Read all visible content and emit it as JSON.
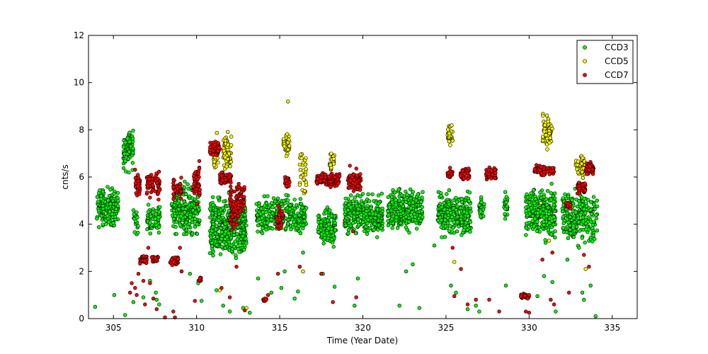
{
  "chart_data": {
    "type": "scatter",
    "xlabel": "Time (Year Date)",
    "ylabel": "cnts/s",
    "xlim": [
      303.5,
      336.5
    ],
    "ylim": [
      0,
      12
    ],
    "xticks": [
      305,
      310,
      315,
      320,
      325,
      330,
      335
    ],
    "yticks": [
      0,
      2,
      4,
      6,
      8,
      10,
      12
    ],
    "legend_position": "top-right",
    "grid": false,
    "series": [
      {
        "name": "CCD3",
        "color": "#00ff00",
        "clusters": [
          {
            "x": [
              304.0,
              305.3
            ],
            "y": [
              3.6,
              5.8
            ],
            "n": 160
          },
          {
            "x": [
              305.6,
              306.2
            ],
            "y": [
              6.0,
              8.4
            ],
            "n": 80
          },
          {
            "x": [
              306.2,
              306.5
            ],
            "y": [
              3.2,
              5.0
            ],
            "n": 20
          },
          {
            "x": [
              307.0,
              307.4
            ],
            "y": [
              3.5,
              5.0
            ],
            "n": 40
          },
          {
            "x": [
              307.5,
              307.8
            ],
            "y": [
              3.5,
              5.0
            ],
            "n": 30
          },
          {
            "x": [
              308.5,
              310.2
            ],
            "y": [
              3.2,
              6.0
            ],
            "n": 220
          },
          {
            "x": [
              310.8,
              313.0
            ],
            "y": [
              2.0,
              5.6
            ],
            "n": 380
          },
          {
            "x": [
              313.6,
              316.6
            ],
            "y": [
              3.3,
              5.5
            ],
            "n": 260
          },
          {
            "x": [
              317.3,
              318.4
            ],
            "y": [
              2.8,
              5.0
            ],
            "n": 120
          },
          {
            "x": [
              318.9,
              321.2
            ],
            "y": [
              3.3,
              5.5
            ],
            "n": 300
          },
          {
            "x": [
              321.5,
              323.6
            ],
            "y": [
              3.5,
              5.8
            ],
            "n": 260
          },
          {
            "x": [
              324.5,
              326.5
            ],
            "y": [
              3.2,
              5.6
            ],
            "n": 240
          },
          {
            "x": [
              327.0,
              327.3
            ],
            "y": [
              4.1,
              5.3
            ],
            "n": 30
          },
          {
            "x": [
              328.5,
              328.7
            ],
            "y": [
              4.0,
              5.6
            ],
            "n": 25
          },
          {
            "x": [
              329.8,
              331.6
            ],
            "y": [
              3.0,
              6.0
            ],
            "n": 260
          },
          {
            "x": [
              332.0,
              334.1
            ],
            "y": [
              2.8,
              5.8
            ],
            "n": 240
          }
        ],
        "scatter": [
          [
            303.9,
            0.5
          ],
          [
            305.05,
            1.0
          ],
          [
            305.7,
            0.15
          ],
          [
            306.2,
            0.7
          ],
          [
            306.8,
            0.9
          ],
          [
            307.2,
            1.6
          ],
          [
            307.55,
            1.1
          ],
          [
            307.6,
            0.8
          ],
          [
            307.75,
            0.6
          ],
          [
            309.1,
            2.0
          ],
          [
            309.6,
            1.9
          ],
          [
            310.1,
            1.5
          ],
          [
            310.3,
            0.75
          ],
          [
            311.2,
            1.2
          ],
          [
            311.6,
            0.55
          ],
          [
            312.0,
            0.3
          ],
          [
            312.8,
            0.45
          ],
          [
            313.2,
            0.25
          ],
          [
            313.7,
            1.7
          ],
          [
            314.5,
            1.1
          ],
          [
            315.1,
            1.3
          ],
          [
            315.3,
            2.0
          ],
          [
            315.9,
            0.85
          ],
          [
            316.1,
            1.15
          ],
          [
            316.4,
            2.8
          ],
          [
            317.6,
            1.9
          ],
          [
            318.3,
            1.35
          ],
          [
            319.5,
            0.55
          ],
          [
            319.7,
            1.7
          ],
          [
            322.2,
            0.55
          ],
          [
            322.6,
            2.0
          ],
          [
            323.0,
            2.3
          ],
          [
            323.4,
            0.45
          ],
          [
            324.3,
            3.1
          ],
          [
            325.3,
            1.4
          ],
          [
            325.6,
            1.1
          ],
          [
            326.3,
            0.4
          ],
          [
            326.8,
            0.55
          ],
          [
            327.0,
            0.3
          ],
          [
            328.6,
            1.4
          ],
          [
            330.5,
            0.95
          ],
          [
            330.9,
            1.8
          ],
          [
            331.4,
            1.55
          ],
          [
            331.6,
            0.3
          ],
          [
            332.3,
            2.5
          ],
          [
            333.0,
            3.0
          ],
          [
            333.2,
            1.1
          ],
          [
            333.3,
            0.8
          ],
          [
            333.7,
            1.4
          ],
          [
            334.0,
            0.1
          ]
        ]
      },
      {
        "name": "CCD5",
        "color": "#ffff00",
        "clusters": [
          {
            "x": [
              311.0,
              311.3
            ],
            "y": [
              6.0,
              8.0
            ],
            "n": 30
          },
          {
            "x": [
              311.6,
              312.1
            ],
            "y": [
              5.8,
              8.2
            ],
            "n": 70
          },
          {
            "x": [
              315.2,
              315.6
            ],
            "y": [
              6.8,
              8.0
            ],
            "n": 40
          },
          {
            "x": [
              316.2,
              316.6
            ],
            "y": [
              5.0,
              7.5
            ],
            "n": 30
          },
          {
            "x": [
              318.0,
              318.3
            ],
            "y": [
              6.0,
              7.3
            ],
            "n": 25
          },
          {
            "x": [
              325.1,
              325.4
            ],
            "y": [
              7.2,
              8.4
            ],
            "n": 30
          },
          {
            "x": [
              330.8,
              331.4
            ],
            "y": [
              7.0,
              8.8
            ],
            "n": 60
          },
          {
            "x": [
              332.8,
              333.4
            ],
            "y": [
              5.8,
              7.2
            ],
            "n": 40
          }
        ],
        "scatter": [
          [
            315.5,
            9.2
          ],
          [
            311.4,
            1.2
          ],
          [
            313.0,
            0.45
          ],
          [
            316.4,
            2.0
          ],
          [
            325.5,
            2.4
          ],
          [
            331.2,
            3.3
          ],
          [
            333.4,
            2.1
          ],
          [
            330.7,
            4.9
          ]
        ]
      },
      {
        "name": "CCD7",
        "color": "#ff0000",
        "clusters": [
          {
            "x": [
              306.3,
              306.6
            ],
            "y": [
              5.0,
              6.4
            ],
            "n": 40
          },
          {
            "x": [
              306.6,
              307.0
            ],
            "y": [
              2.3,
              2.7
            ],
            "n": 40
          },
          {
            "x": [
              307.0,
              307.4
            ],
            "y": [
              5.0,
              6.4
            ],
            "n": 40
          },
          {
            "x": [
              307.3,
              307.7
            ],
            "y": [
              2.3,
              2.7
            ],
            "n": 30
          },
          {
            "x": [
              307.5,
              307.8
            ],
            "y": [
              5.0,
              6.4
            ],
            "n": 30
          },
          {
            "x": [
              308.4,
              308.9
            ],
            "y": [
              2.2,
              2.7
            ],
            "n": 40
          },
          {
            "x": [
              308.6,
              309.1
            ],
            "y": [
              4.8,
              6.1
            ],
            "n": 40
          },
          {
            "x": [
              309.8,
              310.2
            ],
            "y": [
              4.8,
              6.8
            ],
            "n": 50
          },
          {
            "x": [
              310.1,
              310.3
            ],
            "y": [
              1.5,
              1.8
            ],
            "n": 10
          },
          {
            "x": [
              310.8,
              311.4
            ],
            "y": [
              6.8,
              7.6
            ],
            "n": 70
          },
          {
            "x": [
              311.4,
              312.1
            ],
            "y": [
              5.6,
              6.3
            ],
            "n": 60
          },
          {
            "x": [
              312.0,
              312.5
            ],
            "y": [
              3.4,
              5.8
            ],
            "n": 80
          },
          {
            "x": [
              312.5,
              312.9
            ],
            "y": [
              4.0,
              6.3
            ],
            "n": 40
          },
          {
            "x": [
              314.0,
              314.2
            ],
            "y": [
              0.7,
              0.9
            ],
            "n": 10
          },
          {
            "x": [
              314.8,
              315.2
            ],
            "y": [
              3.5,
              5.0
            ],
            "n": 30
          },
          {
            "x": [
              315.3,
              315.6
            ],
            "y": [
              5.4,
              6.2
            ],
            "n": 30
          },
          {
            "x": [
              317.2,
              318.6
            ],
            "y": [
              5.5,
              6.3
            ],
            "n": 140
          },
          {
            "x": [
              319.1,
              319.9
            ],
            "y": [
              5.2,
              6.5
            ],
            "n": 80
          },
          {
            "x": [
              325.1,
              325.4
            ],
            "y": [
              5.8,
              6.4
            ],
            "n": 25
          },
          {
            "x": [
              325.8,
              326.4
            ],
            "y": [
              5.8,
              6.5
            ],
            "n": 40
          },
          {
            "x": [
              327.4,
              328.0
            ],
            "y": [
              5.8,
              6.5
            ],
            "n": 50
          },
          {
            "x": [
              329.5,
              330.0
            ],
            "y": [
              0.8,
              1.1
            ],
            "n": 40
          },
          {
            "x": [
              330.3,
              331.5
            ],
            "y": [
              6.0,
              6.6
            ],
            "n": 80
          },
          {
            "x": [
              332.2,
              332.5
            ],
            "y": [
              4.6,
              5.0
            ],
            "n": 15
          },
          {
            "x": [
              332.9,
              333.4
            ],
            "y": [
              5.2,
              6.0
            ],
            "n": 40
          },
          {
            "x": [
              333.4,
              333.9
            ],
            "y": [
              6.0,
              6.7
            ],
            "n": 50
          }
        ],
        "scatter": [
          [
            306.0,
            1.1
          ],
          [
            306.1,
            1.5
          ],
          [
            306.3,
            1.3
          ],
          [
            306.4,
            1.0
          ],
          [
            306.5,
            1.9
          ],
          [
            306.8,
            1.6
          ],
          [
            306.9,
            0.6
          ],
          [
            307.1,
            3.0
          ],
          [
            307.2,
            1.5
          ],
          [
            307.4,
            0.85
          ],
          [
            307.6,
            0.4
          ],
          [
            308.1,
            0.05
          ],
          [
            308.5,
            2.5
          ],
          [
            308.6,
            0.3
          ],
          [
            308.7,
            0.05
          ],
          [
            309.0,
            3.0
          ],
          [
            309.1,
            2.0
          ],
          [
            309.9,
            0.75
          ],
          [
            311.5,
            1.3
          ],
          [
            312.0,
            0.9
          ],
          [
            312.4,
            2.2
          ],
          [
            312.9,
            0.35
          ],
          [
            314.3,
            1.0
          ],
          [
            314.9,
            1.9
          ],
          [
            316.2,
            2.2
          ],
          [
            317.5,
            1.9
          ],
          [
            318.2,
            0.7
          ],
          [
            319.4,
            3.7
          ],
          [
            319.6,
            0.9
          ],
          [
            325.4,
            3.0
          ],
          [
            325.5,
            0.95
          ],
          [
            325.9,
            2.1
          ],
          [
            326.3,
            0.6
          ],
          [
            326.8,
            0.8
          ],
          [
            327.6,
            0.8
          ],
          [
            328.2,
            0.3
          ],
          [
            329.8,
            0.3
          ],
          [
            330.0,
            0.25
          ],
          [
            330.8,
            2.5
          ],
          [
            331.3,
            0.8
          ],
          [
            331.5,
            0.6
          ],
          [
            331.4,
            2.8
          ],
          [
            333.3,
            2.7
          ],
          [
            333.6,
            2.2
          ],
          [
            332.4,
            1.1
          ]
        ]
      }
    ]
  }
}
